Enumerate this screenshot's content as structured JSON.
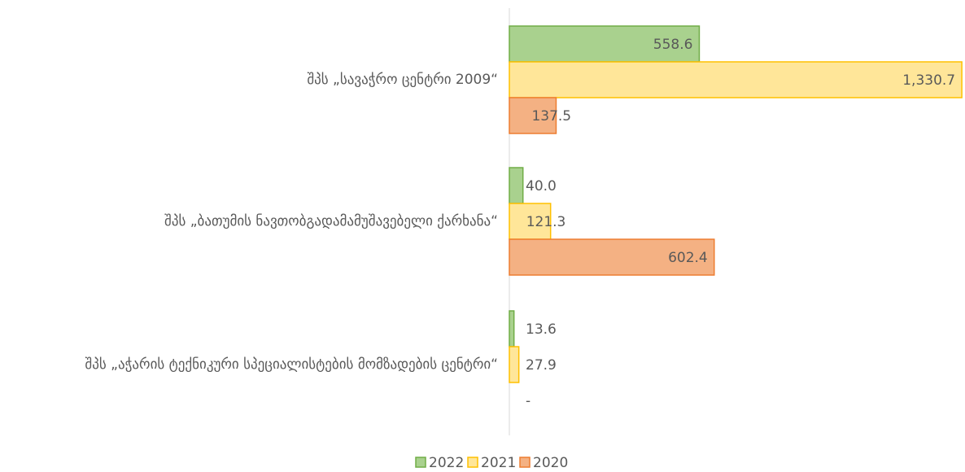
{
  "chart_data": {
    "type": "bar",
    "orientation": "horizontal",
    "categories": [
      "შპს  „სავაჭრო ცენტრი 2009“",
      "შპს „ბათუმის ნავთობგადამამუშავებელი ქარხანა“",
      "შპს „აჭარის ტექნიკური სპეციალისტების მომზადების ცენტრი“"
    ],
    "series": [
      {
        "name": "2022",
        "color": "#a9d18e",
        "border_color": "#70ad47",
        "values": [
          558.6,
          40.0,
          13.6
        ],
        "value_labels": [
          "558.6",
          "40.0",
          "13.6"
        ]
      },
      {
        "name": "2021",
        "color": "#ffe699",
        "border_color": "#ffc000",
        "values": [
          1330.7,
          121.3,
          27.9
        ],
        "value_labels": [
          "1,330.7",
          "121.3",
          "27.9"
        ]
      },
      {
        "name": "2020",
        "color": "#f4b183",
        "border_color": "#ed7d31",
        "values": [
          137.5,
          602.4,
          null
        ],
        "value_labels": [
          "137.5",
          "602.4",
          "-"
        ]
      }
    ],
    "xlim": [
      0,
      1340
    ],
    "legend": "bottom"
  }
}
